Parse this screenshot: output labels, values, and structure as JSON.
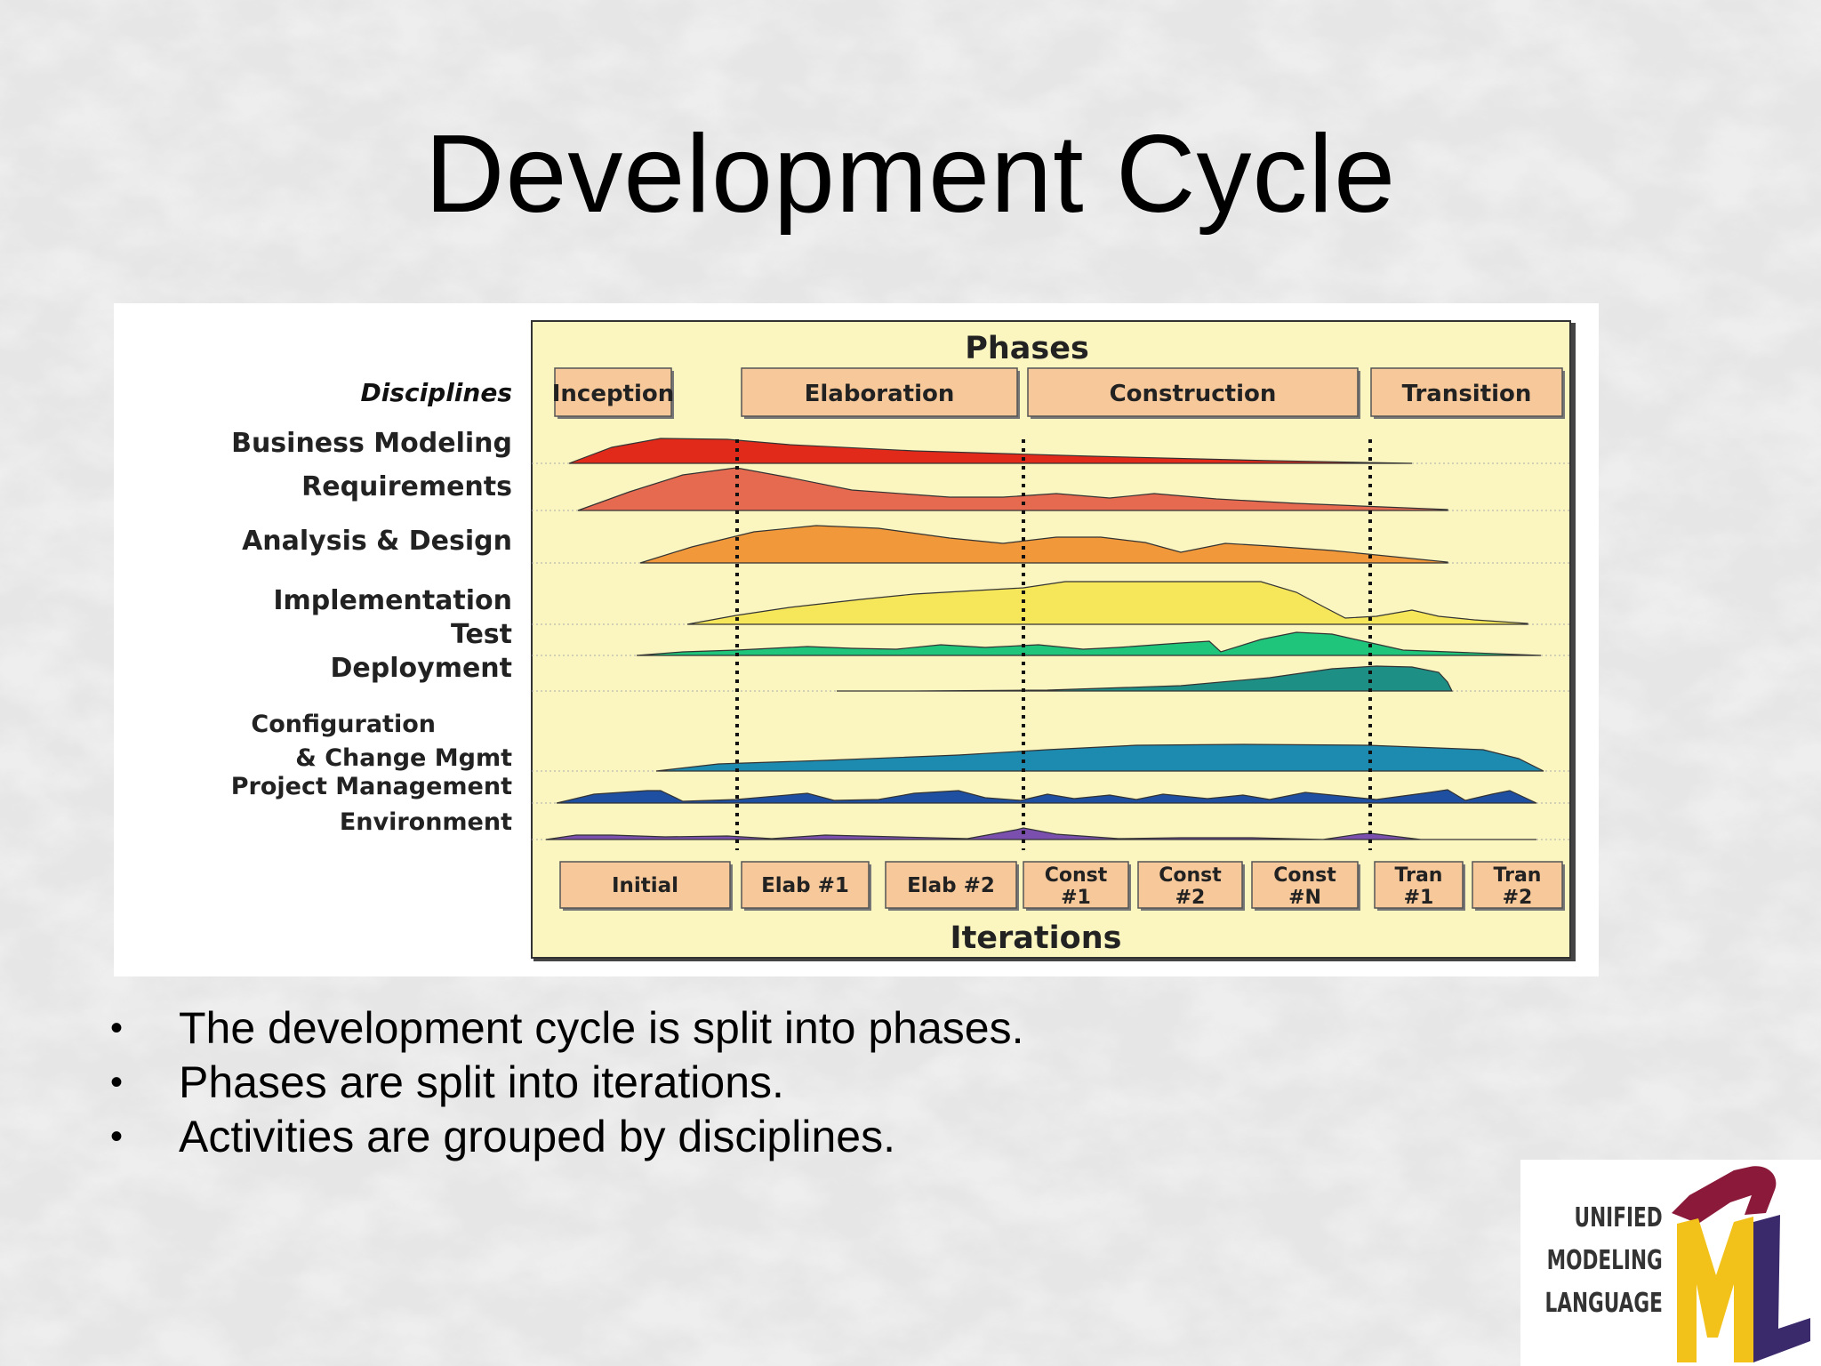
{
  "slide": {
    "title": "Development Cycle"
  },
  "diagram": {
    "phases_title": "Phases",
    "disciplines_heading": "Disciplines",
    "phases": [
      "Inception",
      "Elaboration",
      "Construction",
      "Transition"
    ],
    "disciplines": [
      {
        "label": "Business Modeling",
        "color": "#e12a1a"
      },
      {
        "label": "Requirements",
        "color": "#e66a50"
      },
      {
        "label": "Analysis & Design",
        "color": "#f0983a"
      },
      {
        "label": "Implementation",
        "color": "#f5e65a"
      },
      {
        "label": "Test",
        "color": "#1fc57a"
      },
      {
        "label": "Deployment",
        "color": "#1e8f85"
      },
      {
        "label": "Configuration",
        "label2": "& Change Mgmt",
        "color": "#1d8ab0"
      },
      {
        "label": "Project Management",
        "color": "#1f4fa0"
      },
      {
        "label": "Environment",
        "color": "#7a4fae"
      }
    ],
    "iterations_title": "Iterations",
    "iterations": [
      {
        "line1": "Initial",
        "line2": ""
      },
      {
        "line1": "Elab #1",
        "line2": ""
      },
      {
        "line1": "Elab #2",
        "line2": ""
      },
      {
        "line1": "Const",
        "line2": "#1"
      },
      {
        "line1": "Const",
        "line2": "#2"
      },
      {
        "line1": "Const",
        "line2": "#N"
      },
      {
        "line1": "Tran",
        "line2": "#1"
      },
      {
        "line1": "Tran",
        "line2": "#2"
      }
    ],
    "panel_color": "#fbf5c0",
    "box_color": "#f6c89a"
  },
  "bullets": [
    "The development cycle is split into phases.",
    "Phases are split into iterations.",
    "Activities are grouped by disciplines."
  ],
  "logo": {
    "line1": "UNIFIED",
    "line2": "MODELING",
    "line3": "LANGUAGE",
    "colors": {
      "u": "#8b1a3a",
      "m": "#f2c21b",
      "l": "#3b2a6b"
    }
  }
}
